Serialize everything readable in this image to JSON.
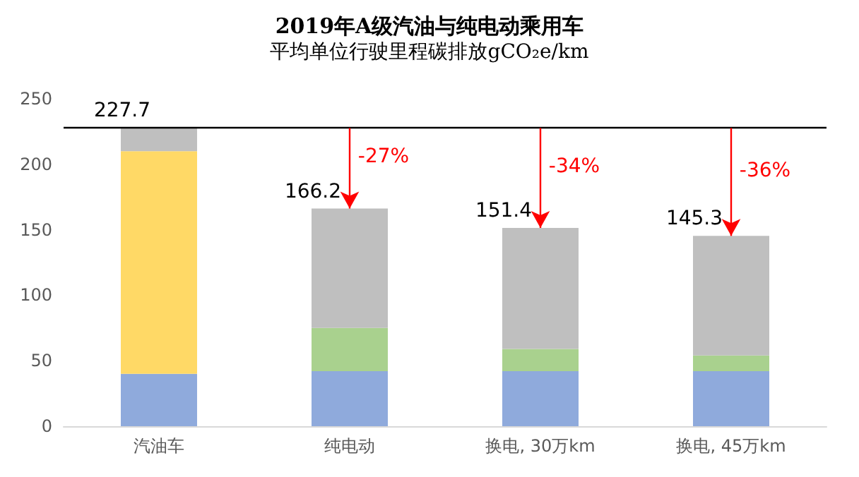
{
  "chart_data": {
    "type": "bar",
    "title": "2019年A级汽油与纯电动乘用车",
    "subtitle": "平均单位行驶里程碳排放gCO₂e/km",
    "categories": [
      "汽油车",
      "纯电动",
      "换电, 30万km",
      "换电, 45万km"
    ],
    "stacked": true,
    "series": [
      {
        "color": "#8faadc",
        "values": [
          40,
          42,
          42,
          42
        ]
      },
      {
        "color": "#ffd966",
        "values": [
          170,
          null,
          null,
          null
        ]
      },
      {
        "color": "#a9d18e",
        "values": [
          null,
          33,
          17,
          12
        ]
      },
      {
        "color": "#bfbfbf",
        "values": [
          17.7,
          91.2,
          92.4,
          91.3
        ]
      }
    ],
    "totals": [
      "227.7",
      "166.2",
      "151.4",
      "145.3"
    ],
    "ylim": [
      0,
      250
    ],
    "yticks": [
      0,
      50,
      100,
      150,
      200,
      250
    ],
    "grid": false,
    "ref_lines": [
      {
        "axis": "y",
        "value": 227.7,
        "color": "#000000"
      }
    ],
    "annotations": [
      {
        "text": "-27%",
        "x": "纯电动",
        "y": 166.2
      },
      {
        "text": "-34%",
        "x": "换电, 30万km",
        "y": 151.4
      },
      {
        "text": "-36%",
        "x": "换电, 45万km",
        "y": 145.3
      }
    ]
  }
}
